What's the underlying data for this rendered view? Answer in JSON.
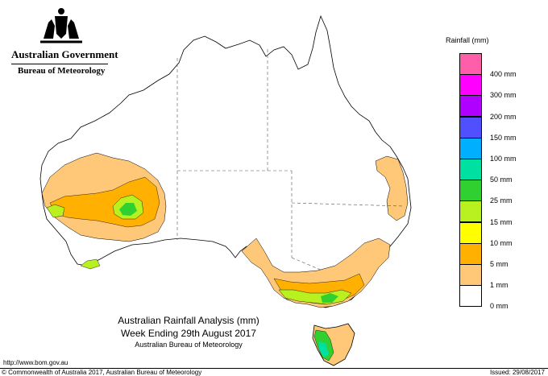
{
  "header": {
    "government": "Australian Government",
    "bureau": "Bureau of Meteorology"
  },
  "legend": {
    "title": "Rainfall (mm)",
    "items": [
      {
        "label": "",
        "color": "#ff5fa8"
      },
      {
        "label": "400 mm",
        "color": "#ff00ff"
      },
      {
        "label": "300 mm",
        "color": "#b000ff"
      },
      {
        "label": "200 mm",
        "color": "#5050ff"
      },
      {
        "label": "150 mm",
        "color": "#00b0ff"
      },
      {
        "label": "100 mm",
        "color": "#00e0a0"
      },
      {
        "label": "50 mm",
        "color": "#30d030"
      },
      {
        "label": "25 mm",
        "color": "#b8f020"
      },
      {
        "label": "15 mm",
        "color": "#ffff00"
      },
      {
        "label": "10 mm",
        "color": "#ffb000"
      },
      {
        "label": "5 mm",
        "color": "#ffc878"
      },
      {
        "label": "1 mm",
        "color": "#ffffff"
      },
      {
        "label": "0 mm",
        "color": ""
      }
    ]
  },
  "title": {
    "line1": "Australian Rainfall Analysis (mm)",
    "line2": "Week Ending 29th August 2017",
    "line3": "Australian Bureau of Meteorology"
  },
  "footer": {
    "url": "http://www.bom.gov.au",
    "copyright": "© Commonwealth of Australia 2017, Australian Bureau of Meteorology",
    "issued": "Issued: 29/08/2017"
  }
}
